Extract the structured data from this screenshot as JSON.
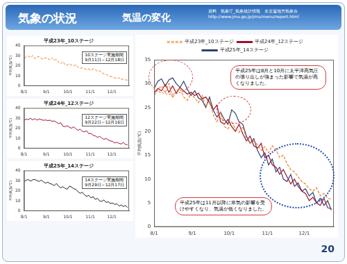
{
  "header": {
    "title": "気象の状況",
    "subtitle": "気温の変化",
    "source": [
      "資料　気象庁_気象統計情報　名古屋地方気象台",
      "http://www.jma.go.jp/jma/menu/report.html"
    ]
  },
  "page_number": "20",
  "chart_data": [
    {
      "type": "line",
      "title": "平成23年_10ステージ",
      "annotations": [
        "10ステージ実施期間",
        "9月11日～12月18日"
      ],
      "y_label": "平均気温(℃)",
      "x": [
        0,
        3,
        6,
        9,
        12,
        15,
        18,
        21,
        24,
        27,
        30,
        33,
        36,
        39,
        42,
        45,
        48,
        51,
        54,
        57,
        60,
        63,
        66,
        69,
        72,
        75,
        78,
        81,
        84,
        87,
        90,
        93,
        96,
        99,
        102,
        105,
        108,
        111,
        114,
        117,
        120,
        123,
        126,
        129,
        132,
        135,
        138,
        141,
        144
      ],
      "series": [
        {
          "color": "#e8822a",
          "line_style": "dashed",
          "values": [
            27.5,
            28.8,
            29.5,
            28.0,
            30.0,
            27.0,
            28.5,
            29.0,
            27.2,
            26.5,
            28.0,
            27.0,
            26.0,
            27.5,
            25.2,
            26.5,
            23.5,
            22.0,
            24.0,
            21.0,
            20.5,
            22.0,
            20.5,
            19.8,
            21.0,
            18.5,
            17.5,
            18.0,
            17.2,
            16.0,
            16.8,
            15.5,
            17.0,
            16.2,
            14.5,
            15.0,
            13.2,
            12.0,
            11.5,
            10.5,
            9.5,
            9.0,
            8.0,
            7.5,
            8.2,
            6.5,
            7.0,
            6.0,
            5.8
          ]
        }
      ],
      "xlim": [
        0,
        146
      ],
      "xticks": [
        {
          "value": 0,
          "label": "8/1"
        },
        {
          "value": 31,
          "label": "9/1"
        },
        {
          "value": 61,
          "label": "10/1"
        },
        {
          "value": 92,
          "label": "11/1"
        },
        {
          "value": 122,
          "label": "12/1"
        }
      ],
      "ylim": [
        0,
        40
      ],
      "yticks": [
        0,
        10,
        20,
        30,
        40
      ],
      "grid": false
    },
    {
      "type": "line",
      "title": "平成24年_12ステージ",
      "annotations": [
        "12ステージ実施期間",
        "9月22日～12月16日"
      ],
      "y_label": "平均気温(℃)",
      "x": [
        0,
        3,
        6,
        9,
        12,
        15,
        18,
        21,
        24,
        27,
        30,
        33,
        36,
        39,
        42,
        45,
        48,
        51,
        54,
        57,
        60,
        63,
        66,
        69,
        72,
        75,
        78,
        81,
        84,
        87,
        90,
        93,
        96,
        99,
        102,
        105,
        108,
        111,
        114,
        117,
        120,
        123,
        126,
        129,
        132,
        135,
        138,
        141,
        144
      ],
      "series": [
        {
          "color": "#a0102a",
          "line_style": "solid",
          "values": [
            28.0,
            29.0,
            28.5,
            29.8,
            28.2,
            29.5,
            28.0,
            29.2,
            28.5,
            27.8,
            28.2,
            27.5,
            28.0,
            26.8,
            27.2,
            26.0,
            24.5,
            25.5,
            22.0,
            21.5,
            22.5,
            21.0,
            20.0,
            21.5,
            19.5,
            18.0,
            19.0,
            17.0,
            16.5,
            17.5,
            14.5,
            15.0,
            13.0,
            12.5,
            11.0,
            12.0,
            10.5,
            9.0,
            10.0,
            8.5,
            7.5,
            7.0,
            5.5,
            6.2,
            5.0,
            4.5,
            6.0,
            4.0,
            3.8
          ]
        }
      ],
      "xlim": [
        0,
        146
      ],
      "xticks": [
        {
          "value": 0,
          "label": "8/1"
        },
        {
          "value": 31,
          "label": "9/1"
        },
        {
          "value": 61,
          "label": "10/1"
        },
        {
          "value": 92,
          "label": "11/1"
        },
        {
          "value": 122,
          "label": "12/1"
        }
      ],
      "ylim": [
        0,
        40
      ],
      "yticks": [
        0,
        10,
        20,
        30,
        40
      ],
      "grid": false
    },
    {
      "type": "line",
      "title": "平成25年_14ステージ",
      "annotations": [
        "14ステージ実施期間",
        "9月29日～12月17日"
      ],
      "y_label": "平均気温(℃)",
      "x": [
        0,
        3,
        6,
        9,
        12,
        15,
        18,
        21,
        24,
        27,
        30,
        33,
        36,
        39,
        42,
        45,
        48,
        51,
        54,
        57,
        60,
        63,
        66,
        69,
        72,
        75,
        78,
        81,
        84,
        87,
        90,
        93,
        96,
        99,
        102,
        105,
        108,
        111,
        114,
        117,
        120,
        123,
        126,
        129,
        132,
        135,
        138,
        141,
        144
      ],
      "series": [
        {
          "color": "#222222",
          "line_style": "solid",
          "values": [
            29.0,
            30.5,
            31.0,
            29.5,
            30.8,
            31.2,
            30.0,
            29.2,
            30.5,
            28.8,
            27.5,
            28.5,
            27.0,
            26.5,
            25.0,
            27.2,
            24.5,
            23.0,
            24.0,
            22.5,
            21.5,
            24.5,
            23.8,
            22.0,
            21.5,
            19.0,
            17.5,
            18.5,
            16.0,
            14.5,
            15.5,
            13.0,
            14.2,
            11.5,
            12.5,
            10.0,
            9.5,
            11.0,
            8.5,
            9.2,
            7.5,
            8.0,
            6.5,
            7.2,
            5.0,
            6.0,
            4.5,
            5.5,
            3.5
          ]
        }
      ],
      "xlim": [
        0,
        146
      ],
      "xticks": [
        {
          "value": 0,
          "label": "8/1"
        },
        {
          "value": 31,
          "label": "9/1"
        },
        {
          "value": 61,
          "label": "10/1"
        },
        {
          "value": 92,
          "label": "11/1"
        },
        {
          "value": 122,
          "label": "12/1"
        }
      ],
      "ylim": [
        0,
        40
      ],
      "yticks": [
        0,
        10,
        20,
        30,
        40
      ],
      "grid": false
    },
    {
      "type": "line",
      "legend": "top",
      "annotations": [
        "平成25年は8月と10月に太平洋高気圧の張り出しが強まった影響で気温が高くなりました。",
        "平成25年は11月以降に寒気の影響を受けやすくなり、気温が低くなりました。"
      ],
      "y_label": "平均気温(℃)",
      "x": [
        0,
        3,
        6,
        9,
        12,
        15,
        18,
        21,
        24,
        27,
        30,
        33,
        36,
        39,
        42,
        45,
        48,
        51,
        54,
        57,
        60,
        63,
        66,
        69,
        72,
        75,
        78,
        81,
        84,
        87,
        90,
        93,
        96,
        99,
        102,
        105,
        108,
        111,
        114,
        117,
        120,
        123,
        126,
        129,
        132,
        135,
        138,
        141,
        144
      ],
      "series": [
        {
          "name": "平成23年_10ステージ",
          "color": "#e8822a",
          "line_style": "dashed",
          "values": [
            27.5,
            28.8,
            29.5,
            28.0,
            30.0,
            27.0,
            28.5,
            29.0,
            27.2,
            26.5,
            28.0,
            27.0,
            26.0,
            27.5,
            25.2,
            26.5,
            23.5,
            22.0,
            24.0,
            21.0,
            20.5,
            22.0,
            20.5,
            19.8,
            21.0,
            18.5,
            17.5,
            18.0,
            17.2,
            16.0,
            16.8,
            15.5,
            17.0,
            16.2,
            14.5,
            15.0,
            13.2,
            12.0,
            11.5,
            10.5,
            9.5,
            9.0,
            8.0,
            7.5,
            8.2,
            6.5,
            7.0,
            6.0,
            5.8
          ]
        },
        {
          "name": "平成24年_12ステージ",
          "color": "#a0102a",
          "line_style": "solid",
          "values": [
            28.0,
            29.0,
            28.5,
            29.8,
            28.2,
            29.5,
            28.0,
            29.2,
            28.5,
            27.8,
            28.2,
            27.5,
            28.0,
            26.8,
            27.2,
            26.0,
            24.5,
            25.5,
            22.0,
            21.5,
            22.5,
            21.0,
            20.0,
            21.5,
            19.5,
            18.0,
            19.0,
            17.0,
            16.5,
            17.5,
            14.5,
            15.0,
            13.0,
            12.5,
            11.0,
            12.0,
            10.5,
            9.0,
            10.0,
            8.5,
            7.5,
            7.0,
            5.5,
            6.2,
            5.0,
            4.5,
            6.0,
            4.0,
            3.8
          ]
        },
        {
          "name": "平成25年_14ステージ",
          "color": "#33406a",
          "line_style": "solid",
          "values": [
            29.0,
            30.5,
            31.0,
            29.5,
            30.8,
            31.2,
            30.0,
            29.2,
            30.5,
            28.8,
            27.5,
            28.5,
            27.0,
            26.5,
            25.0,
            27.2,
            24.5,
            23.0,
            24.0,
            22.5,
            21.5,
            24.5,
            23.8,
            22.0,
            21.5,
            19.0,
            17.5,
            18.5,
            16.0,
            14.5,
            15.5,
            13.0,
            14.2,
            11.5,
            12.5,
            10.0,
            9.5,
            11.0,
            8.5,
            9.2,
            7.5,
            8.0,
            6.5,
            7.2,
            5.0,
            6.0,
            4.5,
            5.5,
            3.5
          ]
        }
      ],
      "xlim": [
        0,
        146
      ],
      "xticks": [
        {
          "value": 0,
          "label": "8/1"
        },
        {
          "value": 31,
          "label": "9/1"
        },
        {
          "value": 61,
          "label": "10/1"
        },
        {
          "value": 92,
          "label": "11/1"
        },
        {
          "value": 122,
          "label": "12/1"
        }
      ],
      "ylim": [
        0,
        35
      ],
      "yticks": [
        0,
        5,
        10,
        15,
        20,
        25,
        30,
        35
      ],
      "grid": false
    }
  ]
}
